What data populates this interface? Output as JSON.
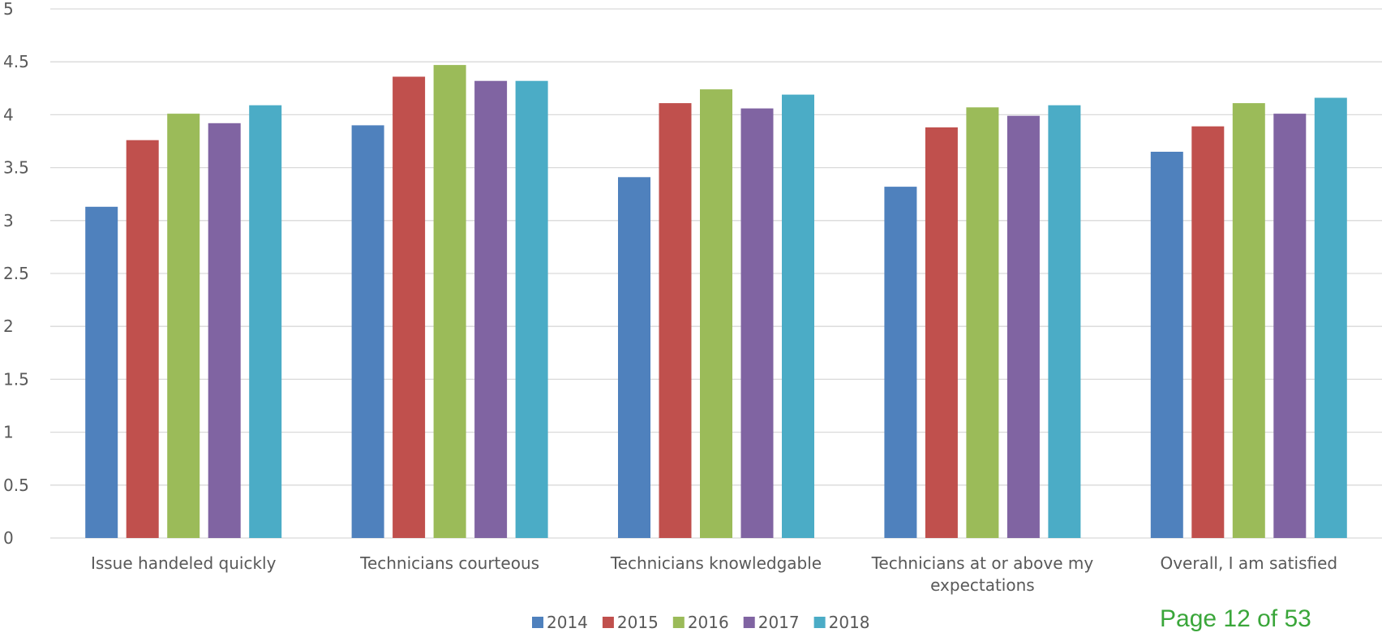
{
  "chart_data": {
    "type": "bar",
    "categories": [
      [
        "Issue handeled quickly"
      ],
      [
        "Technicians courteous"
      ],
      [
        "Technicians knowledgable"
      ],
      [
        "Technicians at or above my",
        "expectations"
      ],
      [
        "Overall, I am satisfied"
      ]
    ],
    "series": [
      {
        "name": "2014",
        "color": "#4f81bd",
        "values": [
          3.13,
          3.9,
          3.41,
          3.32,
          3.65
        ]
      },
      {
        "name": "2015",
        "color": "#c0504d",
        "values": [
          3.76,
          4.36,
          4.11,
          3.88,
          3.89
        ]
      },
      {
        "name": "2016",
        "color": "#9bbb59",
        "values": [
          4.01,
          4.47,
          4.24,
          4.07,
          4.11
        ]
      },
      {
        "name": "2017",
        "color": "#8064a2",
        "values": [
          3.92,
          4.32,
          4.06,
          3.99,
          4.01
        ]
      },
      {
        "name": "2018",
        "color": "#4bacc6",
        "values": [
          4.09,
          4.32,
          4.19,
          4.09,
          4.16
        ]
      }
    ],
    "ylim": [
      0,
      5
    ],
    "yticks": [
      "0",
      "0.5",
      "1",
      "1.5",
      "2",
      "2.5",
      "3",
      "3.5",
      "4",
      "4.5",
      "5"
    ],
    "grid": true,
    "legend_position": "bottom-center",
    "title": "",
    "xlabel": "",
    "ylabel": ""
  },
  "footer": {
    "page_number": "Page 12 of 53"
  }
}
